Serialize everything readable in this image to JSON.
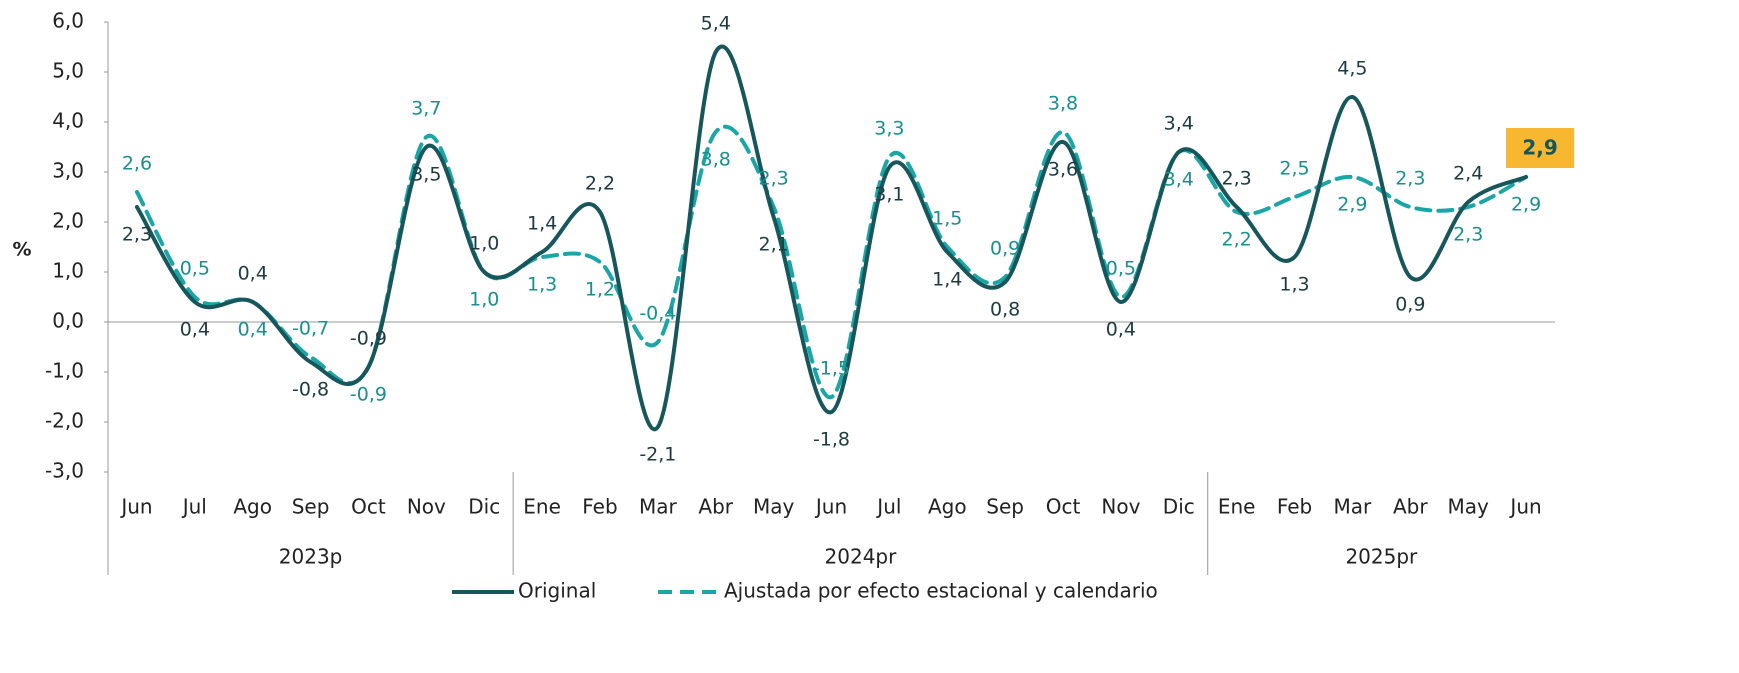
{
  "chart_data": {
    "type": "line",
    "y_label": "%",
    "category_groups": [
      {
        "label": "2023p",
        "categories": [
          "Jun",
          "Jul",
          "Ago",
          "Sep",
          "Oct",
          "Nov",
          "Dic"
        ]
      },
      {
        "label": "2024pr",
        "categories": [
          "Ene",
          "Feb",
          "Mar",
          "Abr",
          "May",
          "Jun",
          "Jul",
          "Ago",
          "Sep",
          "Oct",
          "Nov",
          "Dic"
        ]
      },
      {
        "label": "2025pr",
        "categories": [
          "Ene",
          "Feb",
          "Mar",
          "Abr",
          "May",
          "Jun"
        ]
      }
    ],
    "series": [
      {
        "name": "Original",
        "color": "#17575c",
        "dash": false,
        "values": [
          2.3,
          0.4,
          0.4,
          -0.8,
          -0.9,
          3.5,
          1.0,
          1.4,
          2.2,
          -2.1,
          5.4,
          2.1,
          -1.8,
          3.1,
          1.4,
          0.8,
          3.6,
          0.4,
          3.4,
          2.3,
          1.3,
          4.5,
          0.9,
          2.4,
          2.9
        ],
        "value_labels": [
          "2,3",
          "0,4",
          "0,4",
          "-0,8",
          "-0,9",
          "3,5",
          "1,0",
          "1,4",
          "2,2",
          "-2,1",
          "5,4",
          "2,1",
          "-1,8",
          "3,1",
          "1,4",
          "0,8",
          "3,6",
          "0,4",
          "3,4",
          "2,3",
          "1,3",
          "4,5",
          "0,9",
          "2,4",
          "2,9"
        ]
      },
      {
        "name": "Ajustada por efecto estacional y calendario",
        "color": "#1aa6a6",
        "dash": true,
        "values": [
          2.6,
          0.5,
          0.4,
          -0.7,
          -0.9,
          3.7,
          1.0,
          1.3,
          1.2,
          -0.4,
          3.8,
          2.3,
          -1.5,
          3.3,
          1.5,
          0.9,
          3.8,
          0.5,
          3.4,
          2.2,
          2.5,
          2.9,
          2.3,
          2.3,
          2.9
        ],
        "value_labels": [
          "2,6",
          "0,5",
          "0,4",
          "-0,7",
          "-0,9",
          "3,7",
          "1,0",
          "1,3",
          "1,2",
          "-0,4",
          "3,8",
          "2,3",
          "-1,5",
          "3,3",
          "1,5",
          "0,9",
          "3,8",
          "0,5",
          "3,4",
          "2,2",
          "2,5",
          "2,9",
          "2,3",
          "2,3",
          "2,9"
        ]
      }
    ],
    "ylim": [
      -3.0,
      6.0
    ],
    "yticks": [
      {
        "value": -3.0,
        "label": "-3,0"
      },
      {
        "value": -2.0,
        "label": "-2,0"
      },
      {
        "value": -1.0,
        "label": "-1,0"
      },
      {
        "value": 0.0,
        "label": "0,0"
      },
      {
        "value": 1.0,
        "label": "1,0"
      },
      {
        "value": 2.0,
        "label": "2,0"
      },
      {
        "value": 3.0,
        "label": "3,0"
      },
      {
        "value": 4.0,
        "label": "4,0"
      },
      {
        "value": 5.0,
        "label": "5,0"
      },
      {
        "value": 6.0,
        "label": "6,0"
      }
    ],
    "legend": "bottom"
  }
}
